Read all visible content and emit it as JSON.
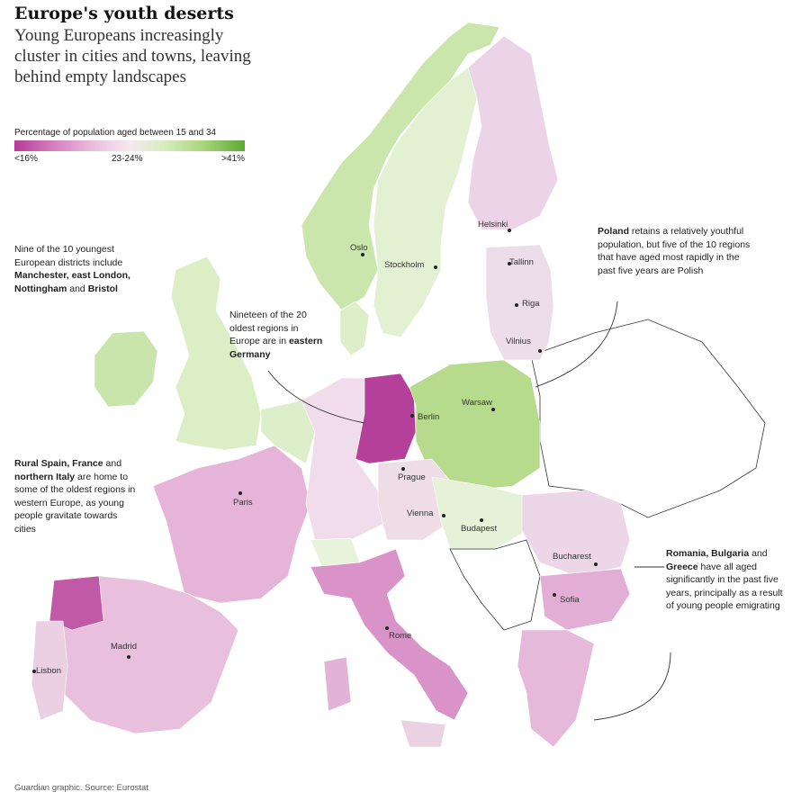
{
  "header": {
    "title": "Europe's youth deserts",
    "subtitle": "Young Europeans increasingly cluster in cities and towns, leaving behind empty landscapes"
  },
  "legend": {
    "label": "Percentage of population aged between 15 and 34",
    "ticks": [
      "<16%",
      "23-24%",
      ">41%"
    ],
    "colors": [
      "#b43b95",
      "#d277bb",
      "#ebc0df",
      "#f6e7f1",
      "#d8edc0",
      "#a9d57c",
      "#5ea833"
    ]
  },
  "annotations": {
    "uk": {
      "text_plain": "Nine of the 10 youngest European districts include ",
      "bold": "Manchester, east London, Nottingham",
      "text_end": " and ",
      "bold_end": "Bristol"
    },
    "germany": {
      "text_plain": "Nineteen of the 20 oldest regions in Europe are in ",
      "bold": "eastern Germany"
    },
    "spain": {
      "bold": "Rural Spain, France",
      "text_mid": " and ",
      "bold_mid": "northern Italy",
      "text_end": " are home to some of the oldest regions in western Europe, as young people gravitate towards cities"
    },
    "poland": {
      "bold": "Poland",
      "text_end": " retains a relatively youthful population, but five of the 10 regions that have aged most rapidly in the past five years are Polish"
    },
    "romania": {
      "bold": "Romania, Bulgaria",
      "text_mid": " and ",
      "bold_mid": "Greece",
      "text_end": " have all aged significantly in the past five years, principally as a result of young people emigrating"
    }
  },
  "cities": [
    "Oslo",
    "Stockholm",
    "Helsinki",
    "Tallinn",
    "Riga",
    "Vilnius",
    "Warsaw",
    "Berlin",
    "Prague",
    "Vienna",
    "Budapest",
    "Bucharest",
    "Sofia",
    "Paris",
    "Madrid",
    "Lisbon",
    "Rome"
  ],
  "source": "Guardian graphic. Source: Eurostat"
}
